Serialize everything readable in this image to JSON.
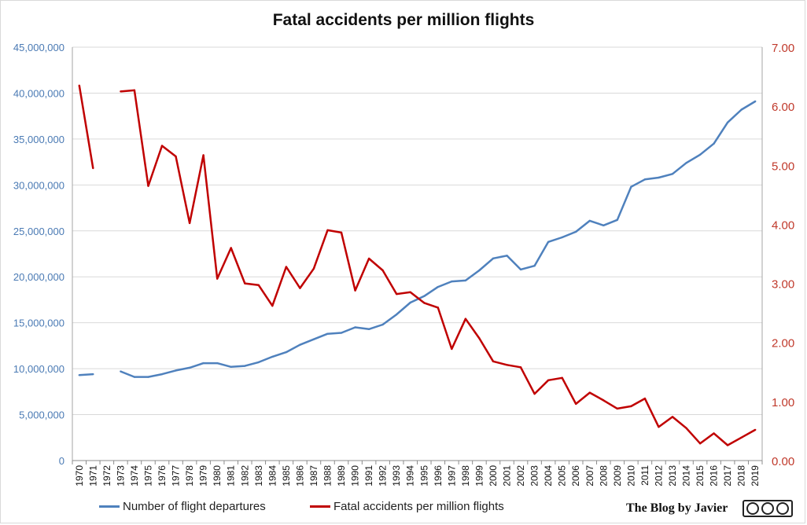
{
  "chart_data": {
    "type": "line",
    "title": "Fatal accidents per million flights",
    "categories": [
      "1970",
      "1971",
      "1972",
      "1973",
      "1974",
      "1975",
      "1976",
      "1977",
      "1978",
      "1979",
      "1980",
      "1981",
      "1982",
      "1983",
      "1984",
      "1985",
      "1986",
      "1987",
      "1988",
      "1989",
      "1990",
      "1991",
      "1992",
      "1993",
      "1994",
      "1995",
      "1996",
      "1997",
      "1998",
      "1999",
      "2000",
      "2001",
      "2002",
      "2003",
      "2004",
      "2005",
      "2006",
      "2007",
      "2008",
      "2009",
      "2010",
      "2011",
      "2012",
      "2013",
      "2014",
      "2015",
      "2016",
      "2017",
      "2018",
      "2019"
    ],
    "y_left": {
      "min": 0,
      "max": 45000000,
      "step": 5000000,
      "tick_labels": [
        "0",
        "5,000,000",
        "10,000,000",
        "15,000,000",
        "20,000,000",
        "25,000,000",
        "30,000,000",
        "35,000,000",
        "40,000,000",
        "45,000,000"
      ]
    },
    "y_right": {
      "min": 0,
      "max": 7,
      "step": 1,
      "tick_labels": [
        "0.00",
        "1.00",
        "2.00",
        "3.00",
        "4.00",
        "5.00",
        "6.00",
        "7.00"
      ]
    },
    "series": [
      {
        "name": "Number of flight departures",
        "axis": "left",
        "color": "#4f81bd",
        "values": [
          9300000,
          9400000,
          null,
          9700000,
          9100000,
          9100000,
          9400000,
          9800000,
          10100000,
          10600000,
          10600000,
          10200000,
          10300000,
          10700000,
          11300000,
          11800000,
          12600000,
          13200000,
          13800000,
          13900000,
          14500000,
          14300000,
          14800000,
          15900000,
          17200000,
          17900000,
          18900000,
          19500000,
          19600000,
          20700000,
          22000000,
          22300000,
          20800000,
          21200000,
          23800000,
          24300000,
          24900000,
          26100000,
          25600000,
          26200000,
          29800000,
          30600000,
          30800000,
          31200000,
          32400000,
          33300000,
          34500000,
          36800000,
          38200000,
          39100000
        ]
      },
      {
        "name": "Fatal accidents per million flights",
        "axis": "right",
        "color": "#c00000",
        "values": [
          6.35,
          4.95,
          null,
          6.25,
          6.27,
          4.65,
          5.33,
          5.15,
          4.02,
          5.17,
          3.08,
          3.6,
          3.0,
          2.97,
          2.62,
          3.28,
          2.92,
          3.25,
          3.9,
          3.86,
          2.88,
          3.42,
          3.22,
          2.82,
          2.85,
          2.67,
          2.59,
          1.89,
          2.4,
          2.07,
          1.68,
          1.62,
          1.58,
          1.13,
          1.36,
          1.4,
          0.96,
          1.15,
          1.02,
          0.88,
          0.92,
          1.05,
          0.57,
          0.74,
          0.55,
          0.29,
          0.46,
          0.26,
          0.39,
          0.52
        ]
      }
    ],
    "grid": true,
    "legend_position": "bottom"
  },
  "credit": "The Blog by Javier"
}
